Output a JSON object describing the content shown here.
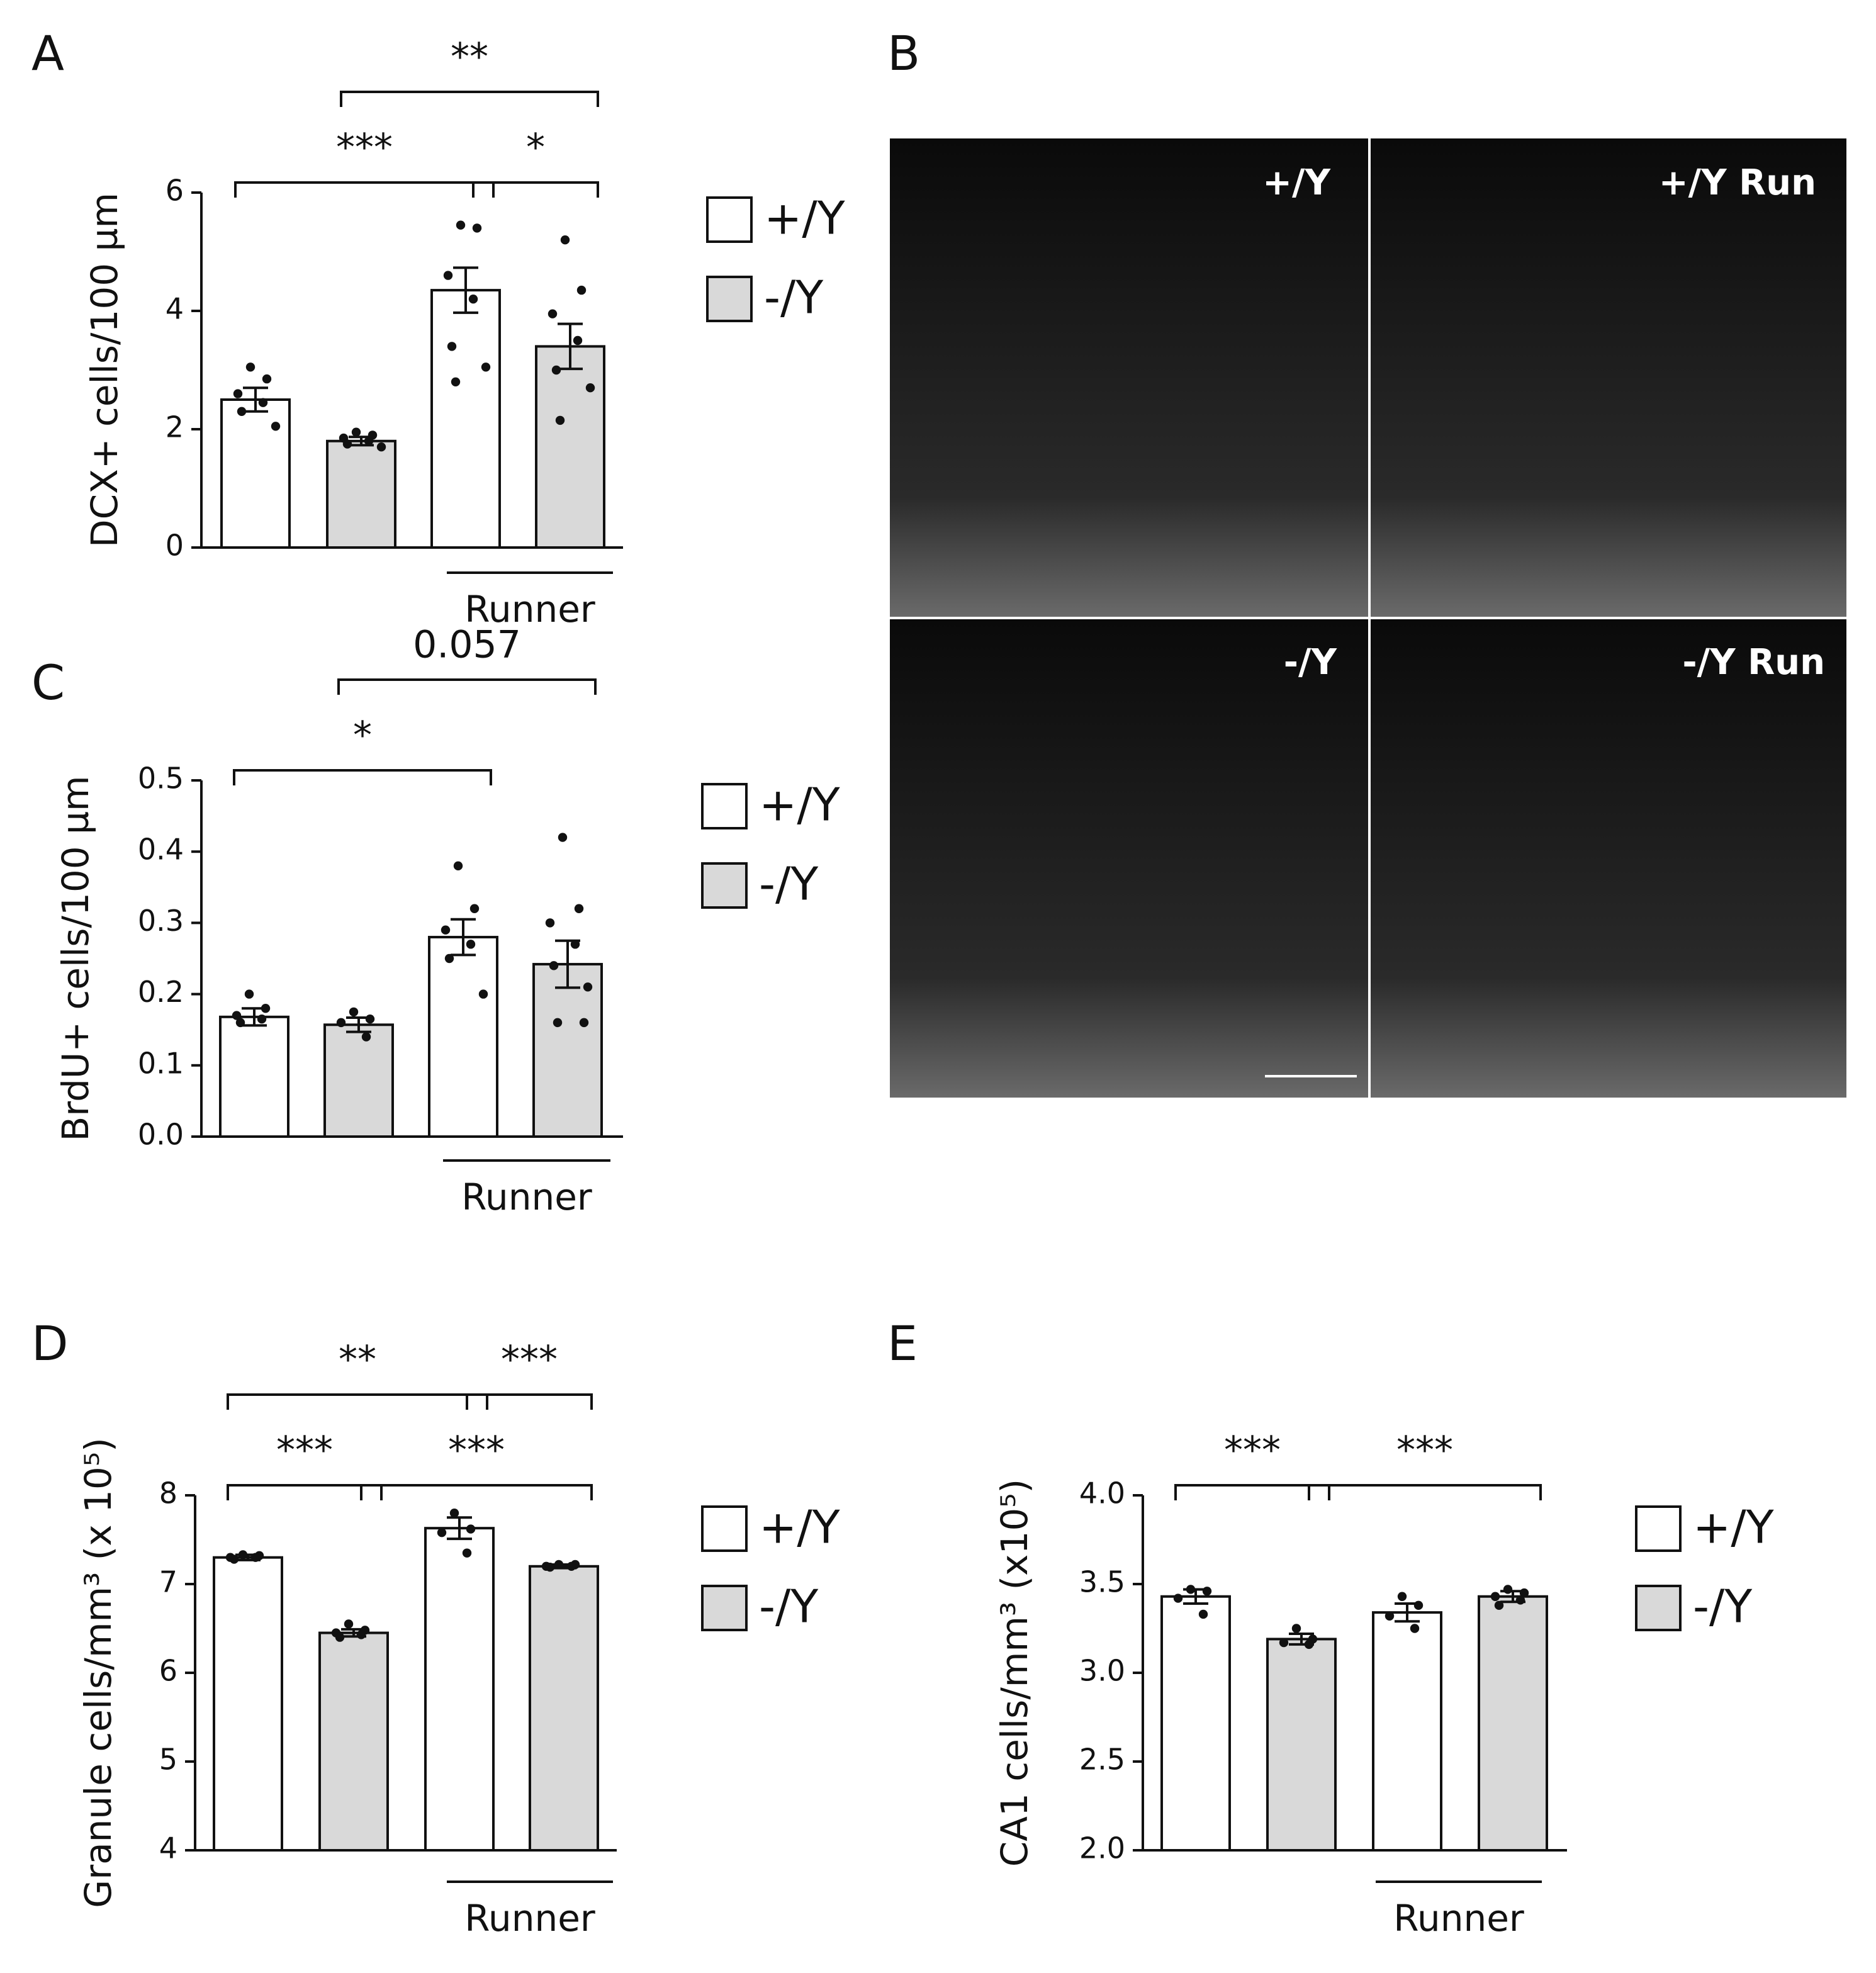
{
  "chart_data": [
    {
      "type": "bar",
      "panel": "A",
      "y_label": "DCX+ cells/100 µm",
      "categories": [
        null,
        null,
        null,
        null
      ],
      "series": [
        {
          "name": "+/Y",
          "color": "#ffffff",
          "values": [
            2.5,
            null,
            4.35,
            null
          ],
          "errors": [
            0.2,
            null,
            0.38,
            null
          ],
          "points": [
            [
              3.05,
              2.85,
              2.6,
              2.45,
              2.3,
              2.05
            ],
            null,
            [
              5.45,
              5.4,
              4.6,
              4.2,
              3.4,
              3.05,
              2.8
            ],
            null
          ]
        },
        {
          "name": "-/Y",
          "color": "#d9d9d9",
          "values": [
            null,
            1.8,
            null,
            3.4
          ],
          "errors": [
            null,
            0.07,
            null,
            0.38
          ],
          "points": [
            null,
            [
              1.95,
              1.9,
              1.85,
              1.8,
              1.75,
              1.7
            ],
            null,
            [
              5.2,
              4.35,
              3.95,
              3.5,
              3.0,
              2.7,
              2.15
            ]
          ]
        }
      ],
      "ylim": [
        0,
        6
      ],
      "yticks": [
        0,
        2,
        4,
        6
      ],
      "groups": [
        {
          "label": "Runner",
          "from": 2,
          "to": 3
        }
      ],
      "annotations": [
        {
          "text": "***",
          "from": 0,
          "to": 2
        },
        {
          "text": "*",
          "from": 2,
          "to": 3
        },
        {
          "text": "**",
          "from": 1,
          "to": 3
        }
      ]
    },
    {
      "type": "bar",
      "panel": "C",
      "y_label": "BrdU+ cells/100 µm",
      "categories": [
        null,
        null,
        null,
        null
      ],
      "series": [
        {
          "name": "+/Y",
          "color": "#ffffff",
          "values": [
            0.168,
            null,
            0.28,
            null
          ],
          "errors": [
            0.012,
            null,
            0.025,
            null
          ],
          "points": [
            [
              0.2,
              0.18,
              0.17,
              0.165,
              0.16
            ],
            null,
            [
              0.38,
              0.32,
              0.29,
              0.27,
              0.25,
              0.2
            ],
            null
          ]
        },
        {
          "name": "-/Y",
          "color": "#d9d9d9",
          "values": [
            null,
            0.157,
            null,
            0.242
          ],
          "errors": [
            null,
            0.01,
            null,
            0.033
          ],
          "points": [
            null,
            [
              0.175,
              0.165,
              0.16,
              0.14
            ],
            null,
            [
              0.42,
              0.32,
              0.3,
              0.27,
              0.24,
              0.21,
              0.16,
              0.16
            ]
          ]
        }
      ],
      "ylim": [
        0,
        0.5
      ],
      "yticks": [
        {
          "value": 0,
          "label": "0.0"
        },
        0.1,
        0.2,
        0.3,
        0.4,
        0.5
      ],
      "groups": [
        {
          "label": "Runner",
          "from": 2,
          "to": 3
        }
      ],
      "annotations": [
        {
          "text": "*",
          "from": 0,
          "to": 2
        },
        {
          "text": "0.057",
          "from": 1,
          "to": 3
        }
      ]
    },
    {
      "type": "bar",
      "panel": "D",
      "y_label": "Granule cells/mm³ (x 10⁵)",
      "categories": [
        null,
        null,
        null,
        null
      ],
      "series": [
        {
          "name": "+/Y",
          "color": "#ffffff",
          "values": [
            7.3,
            null,
            7.63,
            null
          ],
          "errors": [
            0.03,
            null,
            0.12,
            null
          ],
          "points": [
            [
              7.33,
              7.32,
              7.3,
              7.3,
              7.28
            ],
            null,
            [
              7.8,
              7.62,
              7.58,
              7.35
            ],
            null
          ]
        },
        {
          "name": "-/Y",
          "color": "#d9d9d9",
          "values": [
            null,
            6.45,
            null,
            7.2
          ],
          "errors": [
            null,
            0.04,
            null,
            0.02
          ],
          "points": [
            null,
            [
              6.55,
              6.48,
              6.45,
              6.43,
              6.4
            ],
            null,
            [
              7.22,
              7.22,
              7.2,
              7.2,
              7.19
            ]
          ]
        }
      ],
      "ylim": [
        4,
        8
      ],
      "yticks": [
        4,
        5,
        6,
        7,
        8
      ],
      "groups": [
        {
          "label": "Runner",
          "from": 2,
          "to": 3
        }
      ],
      "annotations": [
        {
          "text": "***",
          "from": 0,
          "to": 1
        },
        {
          "text": "***",
          "from": 1,
          "to": 3
        },
        {
          "text": "**",
          "from": 0,
          "to": 2
        },
        {
          "text": "***",
          "from": 2,
          "to": 3
        }
      ]
    },
    {
      "type": "bar",
      "panel": "E",
      "y_label": "CA1 cells/mm³ (x10⁵)",
      "categories": [
        null,
        null,
        null,
        null
      ],
      "series": [
        {
          "name": "+/Y",
          "color": "#ffffff",
          "values": [
            3.43,
            null,
            3.34,
            null
          ],
          "errors": [
            0.04,
            null,
            0.05,
            null
          ],
          "points": [
            [
              3.47,
              3.46,
              3.42,
              3.33
            ],
            null,
            [
              3.43,
              3.38,
              3.32,
              3.25
            ],
            null
          ]
        },
        {
          "name": "-/Y",
          "color": "#d9d9d9",
          "values": [
            null,
            3.19,
            null,
            3.43
          ],
          "errors": [
            null,
            0.03,
            null,
            0.03
          ],
          "points": [
            null,
            [
              3.25,
              3.19,
              3.17,
              3.16
            ],
            null,
            [
              3.47,
              3.45,
              3.43,
              3.41,
              3.38
            ]
          ]
        }
      ],
      "ylim": [
        2,
        4
      ],
      "yticks": [
        {
          "value": 2,
          "label": "2.0"
        },
        2.5,
        {
          "value": 3,
          "label": "3.0"
        },
        3.5,
        {
          "value": 4,
          "label": "4.0"
        }
      ],
      "groups": [
        {
          "label": "Runner",
          "from": 2,
          "to": 3
        }
      ],
      "annotations": [
        {
          "text": "***",
          "from": 0,
          "to": 1
        },
        {
          "text": "***",
          "from": 1,
          "to": 3
        }
      ]
    }
  ],
  "image_panel": {
    "panel": "B",
    "labels": [
      "+/Y",
      "+/Y Run",
      "-/Y",
      "-/Y Run"
    ]
  }
}
